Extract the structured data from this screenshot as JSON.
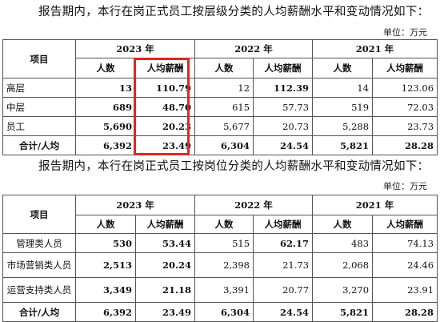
{
  "intro1": "报告期内，本行在岗正式员工按层级分类的人均薪酬水平和变动情况如下：",
  "unit1": "单位：万元",
  "intro2": "报告期内，本行在岗正式员工按岗位分类的人均薪酬水平和变动情况如下：",
  "unit2": "单位：万元",
  "headers": {
    "item": "项目",
    "y2023": "2023 年",
    "y2022": "2022 年",
    "y2021": "2021 年",
    "count": "人数",
    "pay": "人均薪酬"
  },
  "table1": [
    {
      "item": "高层",
      "c23": "13",
      "p23": "110.79",
      "c22": "12",
      "p22": "112.39",
      "c21": "14",
      "p21": "123.06"
    },
    {
      "item": "中层",
      "c23": "689",
      "p23": "48.70",
      "c22": "615",
      "p22": "57.73",
      "c21": "519",
      "p21": "72.03"
    },
    {
      "item": "员工",
      "c23": "5,690",
      "p23": "20.23",
      "c22": "5,677",
      "p22": "20.73",
      "c21": "5,288",
      "p21": "23.73"
    },
    {
      "item": "合计/人均",
      "c23": "6,392",
      "p23": "23.49",
      "c22": "6,304",
      "p22": "24.54",
      "c21": "5,821",
      "p21": "28.28"
    }
  ],
  "table2": [
    {
      "item": "管理类人员",
      "c23": "530",
      "p23": "53.44",
      "c22": "515",
      "p22": "62.17",
      "c21": "483",
      "p21": "74.13"
    },
    {
      "item": "市场营销类人员",
      "c23": "2,513",
      "p23": "20.24",
      "c22": "2,398",
      "p22": "21.73",
      "c21": "2,068",
      "p21": "24.46"
    },
    {
      "item": "运营支持类人员",
      "c23": "3,349",
      "p23": "21.18",
      "c22": "3,391",
      "p22": "20.77",
      "c21": "3,270",
      "p21": "23.91"
    },
    {
      "item": "合计/人均",
      "c23": "6,392",
      "p23": "23.49",
      "c22": "6,304",
      "p22": "24.54",
      "c21": "5,821",
      "p21": "28.28"
    }
  ],
  "highlight_color": "#e52421"
}
